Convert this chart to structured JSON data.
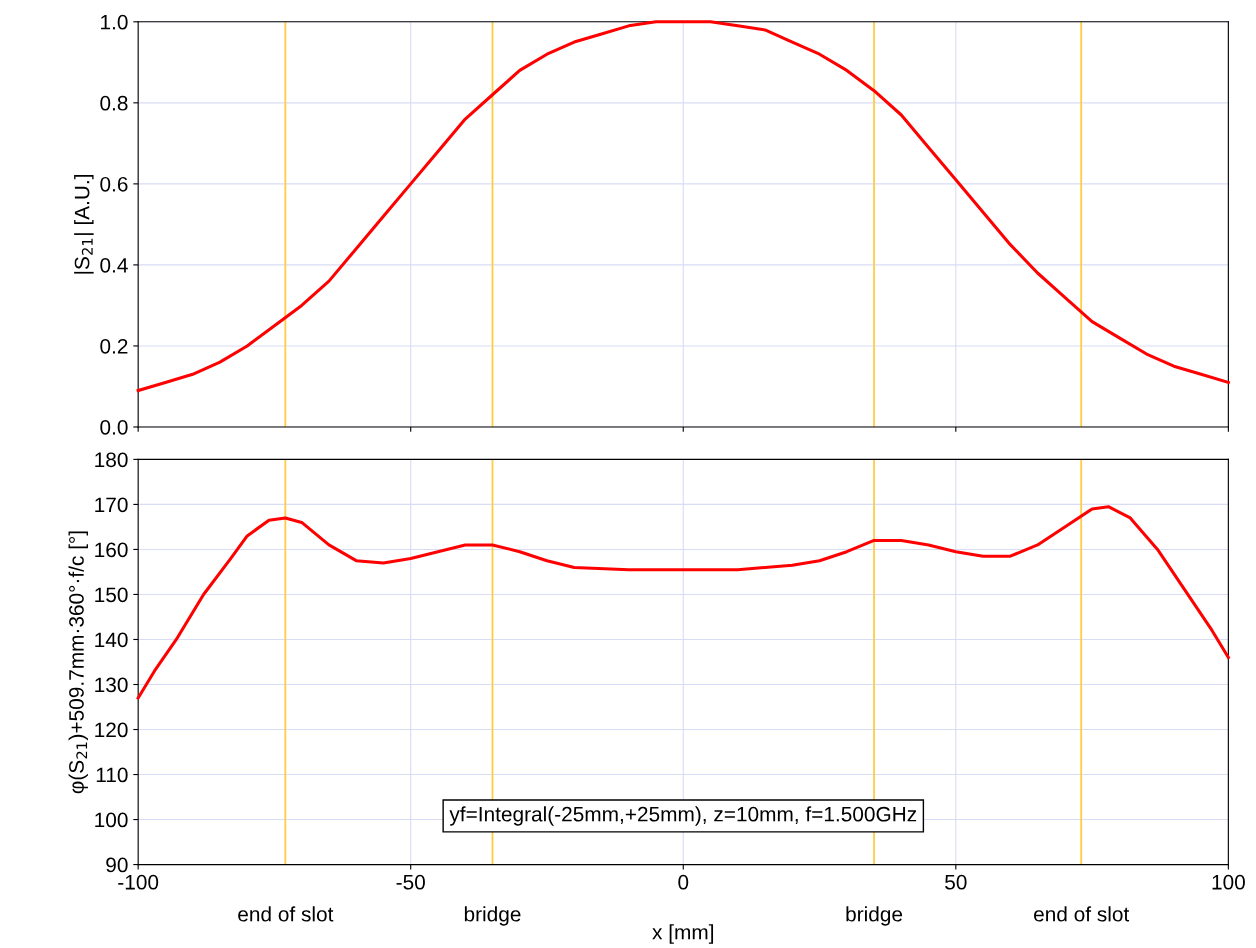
{
  "chart_data": [
    {
      "type": "line",
      "ylabel": "|S$_{21}$| [A.U.]",
      "xlim": [
        -100,
        100
      ],
      "xticks": [
        -100,
        -50,
        0,
        50,
        100
      ],
      "ylim": [
        0,
        1
      ],
      "yticks": [
        {
          "value": 0,
          "label": "0.0"
        },
        0.2,
        0.4,
        0.6,
        0.8,
        {
          "value": 1,
          "label": "1.0"
        }
      ],
      "tick_labels": "y",
      "grid": true,
      "legend": false,
      "marker": "none",
      "line_style": "solid",
      "series": [
        {
          "color": "#ff0000",
          "x": [
            -100,
            -95,
            -90,
            -85,
            -80,
            -75,
            -70,
            -65,
            -60,
            -55,
            -50,
            -45,
            -40,
            -35,
            -30,
            -25,
            -20,
            -15,
            -10,
            -5,
            0,
            5,
            10,
            15,
            20,
            25,
            30,
            35,
            40,
            45,
            50,
            55,
            60,
            65,
            70,
            75,
            80,
            85,
            90,
            95,
            100
          ],
          "values": [
            0.09,
            0.11,
            0.13,
            0.16,
            0.2,
            0.25,
            0.3,
            0.36,
            0.44,
            0.52,
            0.6,
            0.68,
            0.76,
            0.82,
            0.88,
            0.92,
            0.95,
            0.97,
            0.99,
            1.0,
            1.0,
            1.0,
            0.99,
            0.98,
            0.95,
            0.92,
            0.88,
            0.83,
            0.77,
            0.69,
            0.61,
            0.53,
            0.45,
            0.38,
            0.32,
            0.26,
            0.22,
            0.18,
            0.15,
            0.13,
            0.11
          ]
        }
      ],
      "ref_lines": [
        {
          "axis": "x",
          "value": -73,
          "color": "#ffcc44"
        },
        {
          "axis": "x",
          "value": -35,
          "color": "#ffcc44"
        },
        {
          "axis": "x",
          "value": 35,
          "color": "#ffcc44"
        },
        {
          "axis": "x",
          "value": 73,
          "color": "#ffcc44"
        }
      ]
    },
    {
      "type": "line",
      "xlabel": "x [mm]",
      "ylabel": "φ(S$_{21}$)+509.7mm·360°·f/c [°]",
      "xlim": [
        -100,
        100
      ],
      "xticks": [
        -100,
        -50,
        0,
        50,
        100
      ],
      "ylim": [
        90,
        180
      ],
      "yticks": [
        90,
        100,
        110,
        120,
        130,
        140,
        150,
        160,
        170,
        180
      ],
      "grid": true,
      "legend": false,
      "marker": "none",
      "line_style": "solid",
      "annotations": [
        "yf=Integral(-25mm,+25mm), z=10mm, f=1.500GHz"
      ],
      "series": [
        {
          "color": "#ff0000",
          "x": [
            -100,
            -97,
            -93,
            -88,
            -83,
            -80,
            -76,
            -73,
            -70,
            -65,
            -60,
            -55,
            -50,
            -45,
            -40,
            -35,
            -30,
            -25,
            -20,
            -10,
            0,
            10,
            20,
            25,
            30,
            35,
            40,
            45,
            50,
            55,
            60,
            65,
            70,
            75,
            78,
            82,
            87,
            92,
            97,
            100
          ],
          "values": [
            127,
            133,
            140,
            150,
            158,
            163,
            166.5,
            167,
            166,
            161,
            157.5,
            157,
            158,
            159.5,
            161,
            161,
            159.5,
            157.5,
            156,
            155.5,
            155.5,
            155.5,
            156.5,
            157.5,
            159.5,
            162,
            162,
            161,
            159.5,
            158.5,
            158.5,
            161,
            165,
            169,
            169.5,
            167,
            160,
            151,
            142,
            136
          ]
        }
      ],
      "ref_lines": [
        {
          "axis": "x",
          "value": -73,
          "label": "end of slot",
          "color": "#ffcc44"
        },
        {
          "axis": "x",
          "value": -35,
          "label": "bridge",
          "color": "#ffcc44"
        },
        {
          "axis": "x",
          "value": 35,
          "label": "bridge",
          "color": "#ffcc44"
        },
        {
          "axis": "x",
          "value": 73,
          "label": "end of slot",
          "color": "#ffcc44"
        }
      ]
    }
  ]
}
